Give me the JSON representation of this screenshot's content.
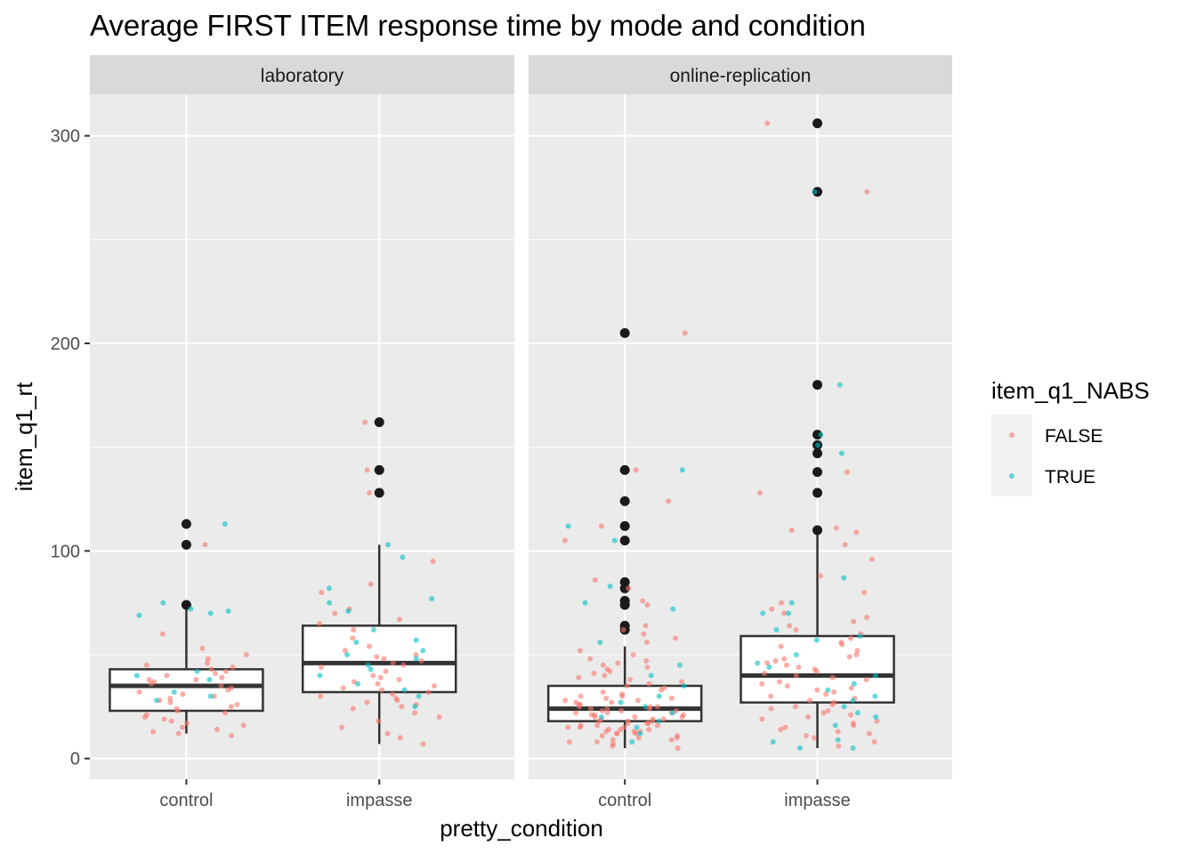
{
  "chart_data": {
    "type": "boxplot",
    "title": "Average FIRST ITEM response time by mode and condition",
    "xlabel": "pretty_condition",
    "ylabel": "item_q1_rt",
    "ylim": [
      -10,
      320
    ],
    "yticks": [
      0,
      100,
      200,
      300
    ],
    "yminor": [
      50,
      150,
      250
    ],
    "grid": true,
    "panels": [
      {
        "name": "laboratory",
        "categories": [
          "control",
          "impasse"
        ],
        "boxes": [
          {
            "category": "control",
            "q1": 23,
            "median": 35,
            "q3": 43,
            "whisker_low": 12,
            "whisker_high": 72,
            "outliers": [
              74,
              103,
              113
            ]
          },
          {
            "category": "impasse",
            "q1": 32,
            "median": 46,
            "q3": 64,
            "whisker_low": 7,
            "whisker_high": 103,
            "outliers": [
              128,
              139,
              162
            ]
          }
        ],
        "points": [
          {
            "category": "control",
            "series": "FALSE",
            "values": [
              103,
              60,
              53,
              50,
              48,
              46,
              45,
              44,
              43,
              42,
              41,
              40,
              39,
              38,
              38,
              37,
              36,
              35,
              34,
              33,
              32,
              31,
              30,
              29,
              28,
              27,
              26,
              25,
              24,
              23,
              22,
              21,
              20,
              19,
              18,
              17,
              16,
              15,
              14,
              13,
              12,
              11
            ]
          },
          {
            "category": "control",
            "series": "TRUE",
            "values": [
              113,
              75,
              72,
              71,
              70,
              69,
              42,
              40,
              38,
              32,
              30,
              28
            ]
          },
          {
            "category": "impasse",
            "series": "FALSE",
            "values": [
              162,
              139,
              128,
              95,
              84,
              80,
              72,
              70,
              67,
              65,
              62,
              58,
              54,
              52,
              50,
              49,
              48,
              47,
              46,
              45,
              44,
              42,
              40,
              39,
              38,
              37,
              36,
              35,
              34,
              33,
              32,
              31,
              30,
              29,
              28,
              27,
              26,
              25,
              24,
              22,
              20,
              18,
              15,
              12,
              10,
              7
            ]
          },
          {
            "category": "impasse",
            "series": "TRUE",
            "values": [
              103,
              97,
              82,
              77,
              75,
              71,
              62,
              57,
              56,
              52,
              50,
              48,
              45,
              43,
              40,
              36,
              33,
              30,
              25
            ]
          }
        ]
      },
      {
        "name": "online-replication",
        "categories": [
          "control",
          "impasse"
        ],
        "boxes": [
          {
            "category": "control",
            "q1": 18,
            "median": 24,
            "q3": 35,
            "whisker_low": 5,
            "whisker_high": 54,
            "outliers": [
              62,
              64,
              74,
              76,
              82,
              85,
              105,
              112,
              124,
              139,
              205
            ]
          },
          {
            "category": "impasse",
            "q1": 27,
            "median": 40,
            "q3": 59,
            "whisker_low": 5,
            "whisker_high": 109,
            "outliers": [
              110,
              128,
              138,
              147,
              151,
              156,
              180,
              273,
              306
            ]
          }
        ],
        "points": [
          {
            "category": "control",
            "series": "FALSE",
            "values": [
              205,
              139,
              124,
              112,
              105,
              86,
              82,
              76,
              74,
              64,
              62,
              60,
              58,
              56,
              52,
              50,
              48,
              47,
              46,
              45,
              44,
              43,
              42,
              41,
              40,
              39,
              38,
              37,
              36,
              35,
              34,
              33,
              32,
              31,
              30,
              30,
              29,
              29,
              28,
              28,
              27,
              27,
              26,
              26,
              25,
              25,
              25,
              24,
              24,
              24,
              23,
              23,
              23,
              22,
              22,
              22,
              21,
              21,
              21,
              20,
              20,
              20,
              19,
              19,
              19,
              18,
              18,
              18,
              17,
              17,
              17,
              16,
              16,
              16,
              15,
              15,
              15,
              14,
              14,
              14,
              13,
              13,
              13,
              12,
              12,
              12,
              11,
              11,
              10,
              10,
              9,
              9,
              8,
              8,
              7,
              6,
              5
            ]
          },
          {
            "category": "control",
            "series": "TRUE",
            "values": [
              139,
              112,
              105,
              83,
              75,
              72,
              56,
              45,
              40,
              35,
              30,
              27,
              25,
              22,
              20,
              18,
              15,
              12,
              8
            ]
          },
          {
            "category": "impasse",
            "series": "FALSE",
            "values": [
              306,
              273,
              138,
              128,
              111,
              110,
              109,
              103,
              96,
              88,
              80,
              75,
              72,
              70,
              68,
              66,
              64,
              62,
              60,
              58,
              56,
              55,
              54,
              52,
              50,
              49,
              48,
              47,
              46,
              45,
              44,
              43,
              42,
              41,
              40,
              39,
              38,
              37,
              36,
              35,
              34,
              33,
              32,
              31,
              30,
              29,
              28,
              27,
              26,
              25,
              24,
              23,
              22,
              21,
              20,
              19,
              18,
              17,
              16,
              15,
              14,
              13,
              12,
              11,
              10,
              8,
              6
            ]
          },
          {
            "category": "impasse",
            "series": "TRUE",
            "values": [
              273,
              180,
              156,
              151,
              147,
              87,
              75,
              70,
              70,
              62,
              59,
              57,
              50,
              46,
              44,
              40,
              36,
              33,
              30,
              28,
              25,
              22,
              20,
              16,
              9,
              8,
              5,
              5
            ]
          }
        ]
      }
    ],
    "legend": {
      "title": "item_q1_NABS",
      "position": "right",
      "entries": [
        {
          "label": "FALSE",
          "color": "#F8766D"
        },
        {
          "label": "TRUE",
          "color": "#00BFC4"
        }
      ]
    },
    "colors": {
      "panel_bg": "#EBEBEB",
      "strip_bg": "#D9D9D9",
      "grid": "#FFFFFF",
      "box_fill": "#FFFFFF",
      "box_line": "#333333",
      "outlier": "#1A1A1A"
    }
  }
}
